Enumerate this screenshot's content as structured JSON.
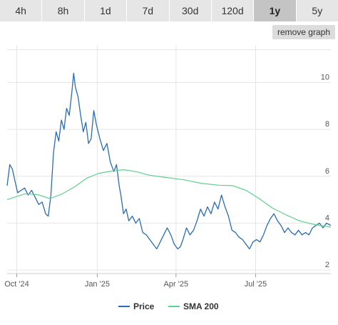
{
  "tabs": [
    {
      "label": "4h",
      "active": false
    },
    {
      "label": "8h",
      "active": false
    },
    {
      "label": "1d",
      "active": false
    },
    {
      "label": "7d",
      "active": false
    },
    {
      "label": "30d",
      "active": false
    },
    {
      "label": "120d",
      "active": false
    },
    {
      "label": "1y",
      "active": true
    },
    {
      "label": "5y",
      "active": false
    }
  ],
  "remove_graph_label": "remove graph",
  "colors": {
    "price": "#2b6cb0",
    "sma": "#5fd08e",
    "grid": "#e6e6e6"
  },
  "chart_data": {
    "type": "line",
    "title": "",
    "xlabel": "",
    "ylabel": "",
    "ylim": [
      1.85,
      11.6
    ],
    "xlim": [
      "2024-09-20",
      "2025-09-25"
    ],
    "yticks": [
      2,
      4,
      6,
      8,
      10
    ],
    "ytick_labels": [
      "2",
      "4",
      "6",
      "8",
      "10"
    ],
    "xticks": [
      {
        "date": "2024-10-01",
        "label": "Oct '24"
      },
      {
        "date": "2025-01-01",
        "label": "Jan '25"
      },
      {
        "date": "2025-04-01",
        "label": "Apr '25"
      },
      {
        "date": "2025-07-01",
        "label": "Jul '25"
      }
    ],
    "grid": true,
    "legend": "bottom",
    "series": [
      {
        "name": "Price",
        "points": [
          [
            "2024-09-20",
            5.6
          ],
          [
            "2024-09-23",
            6.5
          ],
          [
            "2024-09-26",
            6.3
          ],
          [
            "2024-09-29",
            5.8
          ],
          [
            "2024-10-02",
            5.3
          ],
          [
            "2024-10-06",
            5.4
          ],
          [
            "2024-10-10",
            5.5
          ],
          [
            "2024-10-14",
            5.2
          ],
          [
            "2024-10-18",
            5.4
          ],
          [
            "2024-10-22",
            5.1
          ],
          [
            "2024-10-26",
            4.8
          ],
          [
            "2024-10-30",
            4.9
          ],
          [
            "2024-11-03",
            4.4
          ],
          [
            "2024-11-06",
            4.3
          ],
          [
            "2024-11-09",
            5.2
          ],
          [
            "2024-11-12",
            7.0
          ],
          [
            "2024-11-15",
            7.9
          ],
          [
            "2024-11-18",
            7.5
          ],
          [
            "2024-11-21",
            8.4
          ],
          [
            "2024-11-24",
            8.0
          ],
          [
            "2024-11-27",
            8.9
          ],
          [
            "2024-11-30",
            8.6
          ],
          [
            "2024-12-03",
            9.6
          ],
          [
            "2024-12-05",
            10.4
          ],
          [
            "2024-12-07",
            9.8
          ],
          [
            "2024-12-10",
            9.4
          ],
          [
            "2024-12-13",
            8.6
          ],
          [
            "2024-12-16",
            7.9
          ],
          [
            "2024-12-19",
            8.3
          ],
          [
            "2024-12-22",
            7.4
          ],
          [
            "2024-12-25",
            7.6
          ],
          [
            "2024-12-28",
            8.8
          ],
          [
            "2024-12-31",
            8.2
          ],
          [
            "2025-01-04",
            7.6
          ],
          [
            "2025-01-08",
            7.1
          ],
          [
            "2025-01-12",
            7.4
          ],
          [
            "2025-01-16",
            6.6
          ],
          [
            "2025-01-20",
            6.2
          ],
          [
            "2025-01-23",
            6.5
          ],
          [
            "2025-01-26",
            5.6
          ],
          [
            "2025-01-28",
            5.2
          ],
          [
            "2025-01-31",
            4.4
          ],
          [
            "2025-02-03",
            4.6
          ],
          [
            "2025-02-06",
            4.1
          ],
          [
            "2025-02-10",
            4.3
          ],
          [
            "2025-02-14",
            4.0
          ],
          [
            "2025-02-18",
            4.2
          ],
          [
            "2025-02-22",
            3.6
          ],
          [
            "2025-02-26",
            3.5
          ],
          [
            "2025-03-02",
            3.3
          ],
          [
            "2025-03-06",
            3.1
          ],
          [
            "2025-03-10",
            2.9
          ],
          [
            "2025-03-14",
            3.2
          ],
          [
            "2025-03-18",
            3.5
          ],
          [
            "2025-03-22",
            3.8
          ],
          [
            "2025-03-26",
            3.5
          ],
          [
            "2025-03-30",
            3.1
          ],
          [
            "2025-04-03",
            2.9
          ],
          [
            "2025-04-06",
            3.0
          ],
          [
            "2025-04-09",
            3.3
          ],
          [
            "2025-04-13",
            3.8
          ],
          [
            "2025-04-17",
            3.5
          ],
          [
            "2025-04-21",
            3.7
          ],
          [
            "2025-04-25",
            4.1
          ],
          [
            "2025-04-29",
            4.6
          ],
          [
            "2025-05-03",
            4.3
          ],
          [
            "2025-05-07",
            4.7
          ],
          [
            "2025-05-11",
            4.4
          ],
          [
            "2025-05-15",
            4.9
          ],
          [
            "2025-05-19",
            4.6
          ],
          [
            "2025-05-23",
            5.2
          ],
          [
            "2025-05-27",
            4.7
          ],
          [
            "2025-05-31",
            4.3
          ],
          [
            "2025-06-04",
            3.7
          ],
          [
            "2025-06-08",
            3.6
          ],
          [
            "2025-06-12",
            3.4
          ],
          [
            "2025-06-16",
            3.3
          ],
          [
            "2025-06-20",
            3.1
          ],
          [
            "2025-06-24",
            2.9
          ],
          [
            "2025-06-28",
            3.2
          ],
          [
            "2025-07-02",
            3.3
          ],
          [
            "2025-07-06",
            3.2
          ],
          [
            "2025-07-10",
            3.5
          ],
          [
            "2025-07-14",
            3.9
          ],
          [
            "2025-07-18",
            4.2
          ],
          [
            "2025-07-22",
            4.4
          ],
          [
            "2025-07-26",
            4.1
          ],
          [
            "2025-07-30",
            3.9
          ],
          [
            "2025-08-03",
            3.6
          ],
          [
            "2025-08-07",
            3.8
          ],
          [
            "2025-08-11",
            3.6
          ],
          [
            "2025-08-15",
            3.5
          ],
          [
            "2025-08-19",
            3.7
          ],
          [
            "2025-08-23",
            3.5
          ],
          [
            "2025-08-27",
            3.6
          ],
          [
            "2025-08-31",
            3.5
          ],
          [
            "2025-09-04",
            3.8
          ],
          [
            "2025-09-08",
            3.9
          ],
          [
            "2025-09-12",
            4.0
          ],
          [
            "2025-09-16",
            3.8
          ],
          [
            "2025-09-20",
            4.0
          ],
          [
            "2025-09-25",
            3.9
          ]
        ]
      },
      {
        "name": "SMA 200",
        "points": [
          [
            "2024-09-20",
            5.0
          ],
          [
            "2024-10-10",
            5.25
          ],
          [
            "2024-10-25",
            5.22
          ],
          [
            "2024-11-08",
            5.05
          ],
          [
            "2024-11-22",
            5.25
          ],
          [
            "2024-12-06",
            5.55
          ],
          [
            "2024-12-20",
            5.92
          ],
          [
            "2025-01-03",
            6.13
          ],
          [
            "2025-01-17",
            6.22
          ],
          [
            "2025-01-31",
            6.28
          ],
          [
            "2025-02-14",
            6.2
          ],
          [
            "2025-03-01",
            6.05
          ],
          [
            "2025-03-20",
            5.95
          ],
          [
            "2025-04-10",
            5.85
          ],
          [
            "2025-04-30",
            5.7
          ],
          [
            "2025-05-20",
            5.62
          ],
          [
            "2025-06-05",
            5.6
          ],
          [
            "2025-06-20",
            5.4
          ],
          [
            "2025-07-05",
            5.05
          ],
          [
            "2025-07-20",
            4.65
          ],
          [
            "2025-08-05",
            4.35
          ],
          [
            "2025-08-20",
            4.1
          ],
          [
            "2025-09-05",
            3.95
          ],
          [
            "2025-09-25",
            3.83
          ]
        ]
      }
    ]
  }
}
